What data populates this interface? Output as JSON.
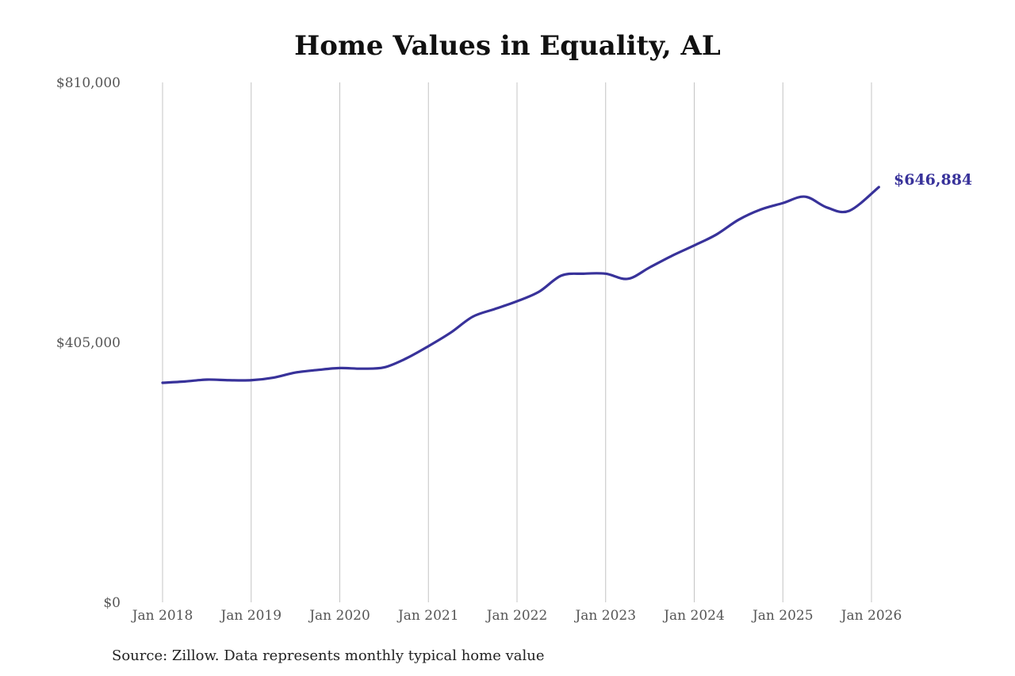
{
  "chart_data": {
    "type": "line",
    "title": "Home Values in Equality, AL",
    "source": "Source: Zillow. Data represents monthly typical home value",
    "xlabel": "",
    "ylabel": "",
    "ylim": [
      0,
      810000
    ],
    "yticks": [
      {
        "value": 0,
        "label": "$0"
      },
      {
        "value": 405000,
        "label": "$405,000"
      },
      {
        "value": 810000,
        "label": "$810,000"
      }
    ],
    "xticks": [
      {
        "value": "2018-01",
        "label": "Jan 2018"
      },
      {
        "value": "2019-01",
        "label": "Jan 2019"
      },
      {
        "value": "2020-01",
        "label": "Jan 2020"
      },
      {
        "value": "2021-01",
        "label": "Jan 2021"
      },
      {
        "value": "2022-01",
        "label": "Jan 2022"
      },
      {
        "value": "2023-01",
        "label": "Jan 2023"
      },
      {
        "value": "2024-01",
        "label": "Jan 2024"
      },
      {
        "value": "2025-01",
        "label": "Jan 2025"
      },
      {
        "value": "2026-01",
        "label": "Jan 2026"
      }
    ],
    "grid": "vertical",
    "line_color": "#38329a",
    "end_label": "$646,884",
    "series": [
      {
        "x": [
          "2018-01",
          "2018-04",
          "2018-07",
          "2018-10",
          "2019-01",
          "2019-04",
          "2019-07",
          "2019-10",
          "2020-01",
          "2020-04",
          "2020-07",
          "2020-10",
          "2021-01",
          "2021-04",
          "2021-07",
          "2021-10",
          "2022-01",
          "2022-04",
          "2022-07",
          "2022-10",
          "2023-01",
          "2023-04",
          "2023-07",
          "2023-10",
          "2024-01",
          "2024-04",
          "2024-07",
          "2024-10",
          "2025-01",
          "2025-04",
          "2025-07",
          "2025-10",
          "2026-02"
        ],
        "values": [
          342000,
          344000,
          347000,
          346000,
          346000,
          350000,
          358000,
          362000,
          365000,
          364000,
          366000,
          380000,
          399000,
          420000,
          445000,
          457000,
          469000,
          484000,
          509000,
          512000,
          512000,
          504000,
          522000,
          540000,
          556000,
          573000,
          596000,
          612000,
          622000,
          632000,
          615000,
          610000,
          646884
        ]
      }
    ]
  }
}
